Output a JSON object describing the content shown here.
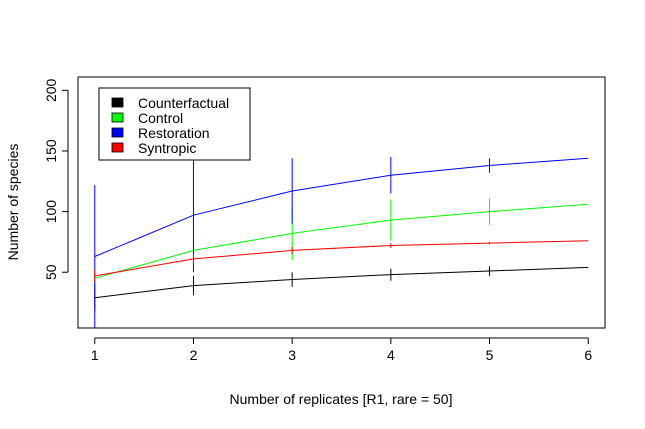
{
  "chart_data": {
    "type": "line",
    "title": "",
    "xlabel": "Number of replicates [R1, rare = 50]",
    "ylabel": "Number of species",
    "xlim": [
      0.83,
      6.17
    ],
    "ylim": [
      4,
      211
    ],
    "x": [
      1,
      2,
      3,
      4,
      5,
      6
    ],
    "x_ticks": [
      1,
      2,
      3,
      4,
      5,
      6
    ],
    "y_ticks": [
      50,
      100,
      150,
      200
    ],
    "legend_position": "top-left",
    "grid": false,
    "series": [
      {
        "name": "Counterfactual",
        "color": "#000000",
        "values": [
          29,
          39,
          44,
          48,
          51,
          54
        ],
        "error_low": [
          18,
          31,
          38,
          43,
          47
        ],
        "error_high": [
          40,
          47,
          50,
          53,
          55
        ]
      },
      {
        "name": "Control",
        "color": "#00ff00",
        "values": [
          45,
          68,
          82,
          93,
          100,
          106
        ],
        "error_low": [
          40,
          50,
          60,
          76,
          89
        ],
        "error_high": [
          50,
          86,
          104,
          110,
          111
        ]
      },
      {
        "name": "Restoration",
        "color": "#0000ff",
        "values": [
          63,
          97,
          117,
          130,
          138,
          144
        ],
        "error_low": [
          4,
          50,
          90,
          115,
          132
        ],
        "error_high": [
          122,
          144,
          144,
          145,
          144
        ]
      },
      {
        "name": "Syntropic",
        "color": "#ff0000",
        "values": [
          47,
          61,
          68,
          72,
          74,
          76
        ],
        "error_low": [
          42,
          57,
          65,
          70,
          73
        ],
        "error_high": [
          52,
          65,
          71,
          74,
          75
        ]
      }
    ]
  }
}
